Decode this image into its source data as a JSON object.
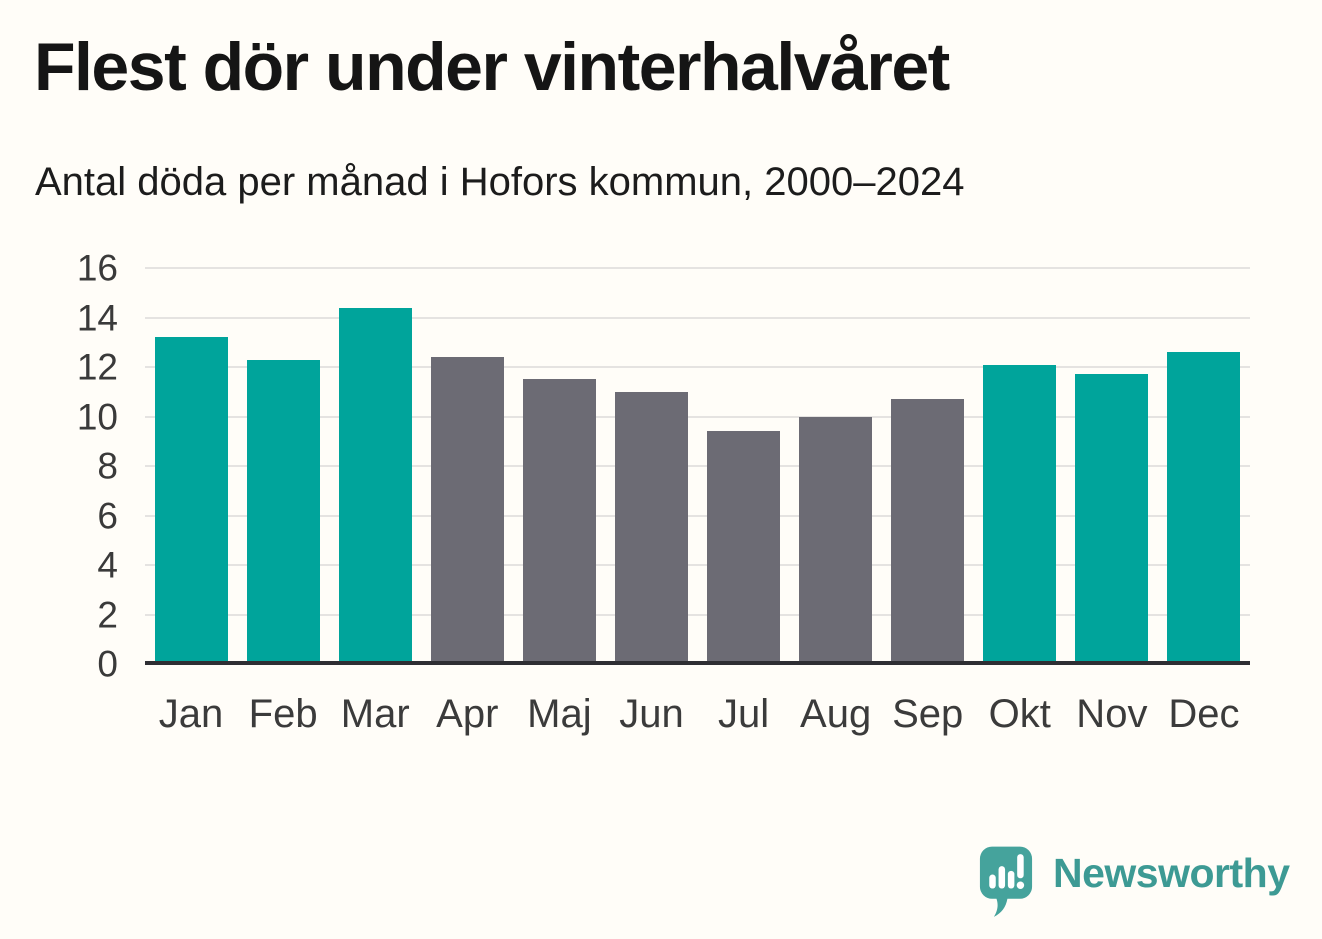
{
  "chart_data": {
    "type": "bar",
    "title": "Flest dör under vinterhalvåret",
    "subtitle": "Antal döda per månad i Hofors kommun, 2000–2024",
    "categories": [
      "Jan",
      "Feb",
      "Mar",
      "Apr",
      "Maj",
      "Jun",
      "Jul",
      "Aug",
      "Sep",
      "Okt",
      "Nov",
      "Dec"
    ],
    "values": [
      13.2,
      12.3,
      14.4,
      12.4,
      11.5,
      11.0,
      9.4,
      10.0,
      10.7,
      12.1,
      11.7,
      12.6
    ],
    "bar_color_keys": [
      "winter",
      "winter",
      "winter",
      "summer",
      "summer",
      "summer",
      "summer",
      "summer",
      "summer",
      "winter",
      "winter",
      "winter"
    ],
    "colors": {
      "winter": "#00a49b",
      "summer": "#6c6b74"
    },
    "xlabel": "",
    "ylabel": "",
    "ylim": [
      0,
      16
    ],
    "yticks": [
      0,
      2,
      4,
      6,
      8,
      10,
      12,
      14,
      16
    ],
    "grid": "horizontal",
    "legend": "none"
  },
  "branding": {
    "wordmark": "Newsworthy",
    "wordmark_color": "#3d9a94",
    "icon": "speech-bubble-bar-chart-exclamation-icon",
    "icon_color": "#45a39c",
    "icon_glyph_color": "#ffffff"
  }
}
